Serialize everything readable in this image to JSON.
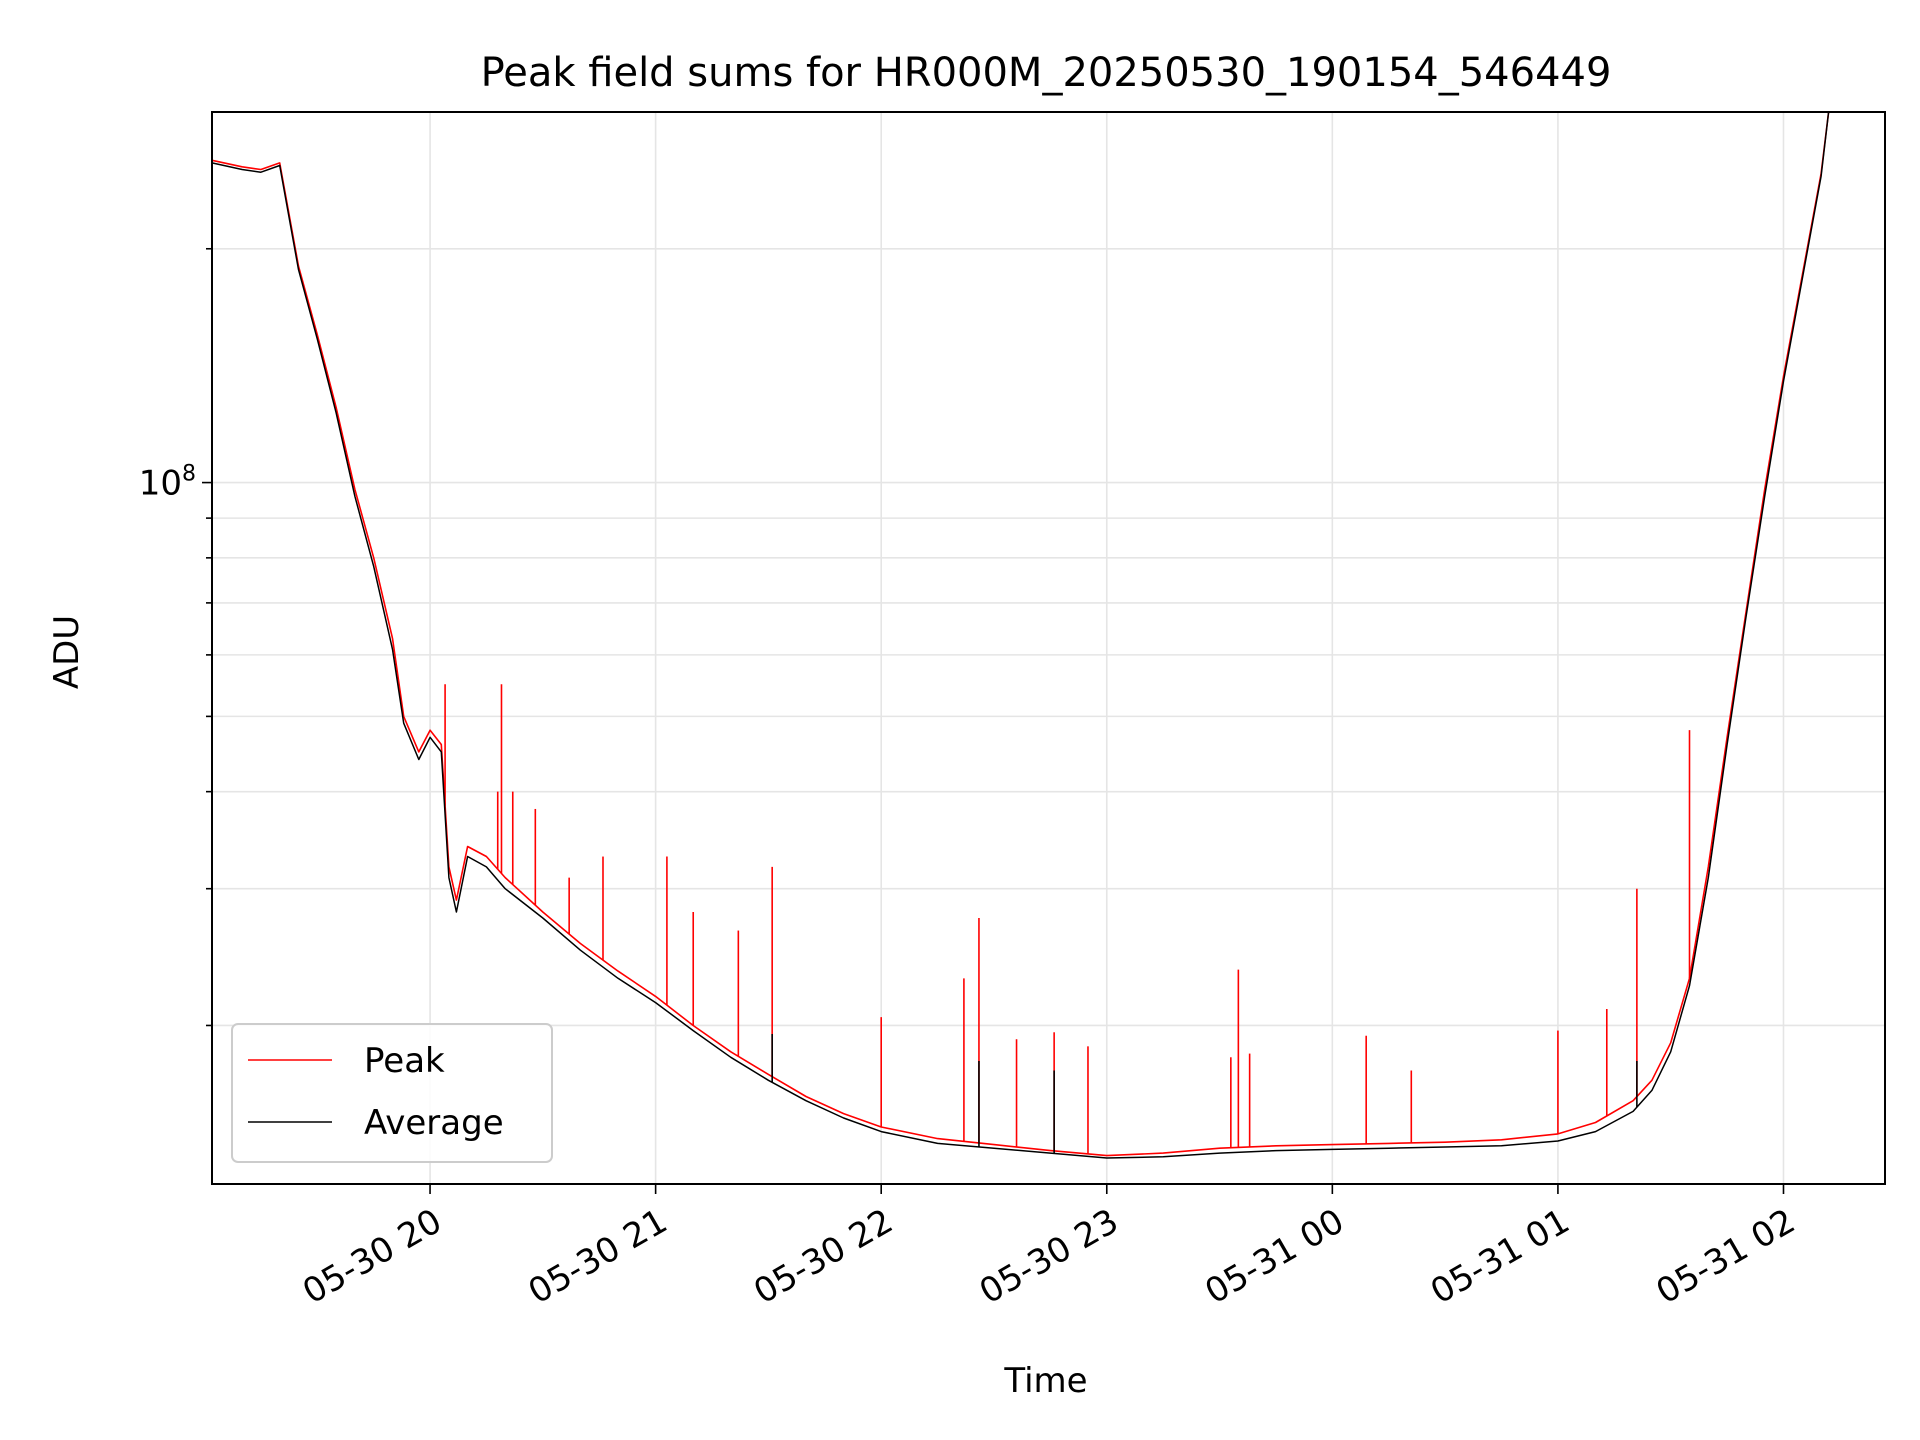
{
  "chart_data": {
    "type": "line",
    "title": "Peak field sums for HR000M_20250530_190154_546449",
    "xlabel": "Time",
    "ylabel": "ADU",
    "y_scale": "log",
    "ylim": [
      12500000,
      300000000
    ],
    "xlim": [
      "2025-05-30 19:02",
      "2025-05-31 02:27"
    ],
    "x_ticks": [
      {
        "t": "2025-05-30 20:00",
        "label": "05-30 20"
      },
      {
        "t": "2025-05-30 21:00",
        "label": "05-30 21"
      },
      {
        "t": "2025-05-30 22:00",
        "label": "05-30 22"
      },
      {
        "t": "2025-05-30 23:00",
        "label": "05-30 23"
      },
      {
        "t": "2025-05-31 00:00",
        "label": "05-31 00"
      },
      {
        "t": "2025-05-31 01:00",
        "label": "05-31 01"
      },
      {
        "t": "2025-05-31 02:00",
        "label": "05-31 02"
      }
    ],
    "y_major_ticks": [
      {
        "value": 100000000,
        "label_base": "10",
        "label_exp": "8"
      }
    ],
    "y_minor_ticks": [
      20000000,
      30000000,
      40000000,
      50000000,
      60000000,
      70000000,
      80000000,
      90000000,
      200000000
    ],
    "grid": true,
    "legend_position": "lower-left",
    "series": [
      {
        "name": "Peak",
        "color": "#ff0000",
        "x": [
          "2025-05-30 19:02",
          "2025-05-30 19:10",
          "2025-05-30 19:15",
          "2025-05-30 19:20",
          "2025-05-30 19:25",
          "2025-05-30 19:30",
          "2025-05-30 19:35",
          "2025-05-30 19:40",
          "2025-05-30 19:45",
          "2025-05-30 19:50",
          "2025-05-30 19:53",
          "2025-05-30 19:57",
          "2025-05-30 20:00",
          "2025-05-30 20:03",
          "2025-05-30 20:05",
          "2025-05-30 20:07",
          "2025-05-30 20:10",
          "2025-05-30 20:15",
          "2025-05-30 20:20",
          "2025-05-30 20:30",
          "2025-05-30 20:40",
          "2025-05-30 20:50",
          "2025-05-30 21:00",
          "2025-05-30 21:10",
          "2025-05-30 21:20",
          "2025-05-30 21:30",
          "2025-05-30 21:40",
          "2025-05-30 21:50",
          "2025-05-30 22:00",
          "2025-05-30 22:15",
          "2025-05-30 22:30",
          "2025-05-30 22:45",
          "2025-05-30 23:00",
          "2025-05-30 23:15",
          "2025-05-30 23:30",
          "2025-05-30 23:45",
          "2025-05-31 00:00",
          "2025-05-31 00:15",
          "2025-05-31 00:30",
          "2025-05-31 00:45",
          "2025-05-31 01:00",
          "2025-05-31 01:10",
          "2025-05-31 01:20",
          "2025-05-31 01:25",
          "2025-05-31 01:30",
          "2025-05-31 01:35",
          "2025-05-31 01:40",
          "2025-05-31 01:45",
          "2025-05-31 01:50",
          "2025-05-31 01:55",
          "2025-05-31 02:00",
          "2025-05-31 02:05",
          "2025-05-31 02:10",
          "2025-05-31 02:12"
        ],
        "y": [
          260000000,
          255000000,
          253000000,
          258000000,
          190000000,
          155000000,
          125000000,
          98000000,
          80000000,
          63000000,
          50000000,
          45000000,
          48000000,
          46000000,
          32000000,
          29000000,
          34000000,
          33000000,
          31000000,
          28000000,
          25500000,
          23500000,
          21800000,
          20000000,
          18500000,
          17300000,
          16200000,
          15400000,
          14800000,
          14300000,
          14050000,
          13800000,
          13600000,
          13700000,
          13900000,
          14000000,
          14050000,
          14100000,
          14150000,
          14250000,
          14500000,
          15000000,
          16000000,
          17000000,
          19000000,
          23000000,
          32000000,
          47000000,
          68000000,
          98000000,
          137000000,
          185000000,
          250000000,
          300000000
        ],
        "spikes": [
          {
            "x": "2025-05-30 20:04",
            "y": 55000000
          },
          {
            "x": "2025-05-30 20:18",
            "y": 40000000
          },
          {
            "x": "2025-05-30 20:19",
            "y": 55000000
          },
          {
            "x": "2025-05-30 20:22",
            "y": 40000000
          },
          {
            "x": "2025-05-30 20:28",
            "y": 38000000
          },
          {
            "x": "2025-05-30 20:37",
            "y": 31000000
          },
          {
            "x": "2025-05-30 20:46",
            "y": 33000000
          },
          {
            "x": "2025-05-30 21:03",
            "y": 33000000
          },
          {
            "x": "2025-05-30 21:10",
            "y": 28000000
          },
          {
            "x": "2025-05-30 21:22",
            "y": 26500000
          },
          {
            "x": "2025-05-30 21:31",
            "y": 32000000
          },
          {
            "x": "2025-05-30 22:00",
            "y": 20500000
          },
          {
            "x": "2025-05-30 22:22",
            "y": 23000000
          },
          {
            "x": "2025-05-30 22:26",
            "y": 27500000
          },
          {
            "x": "2025-05-30 22:36",
            "y": 19200000
          },
          {
            "x": "2025-05-30 22:46",
            "y": 19600000
          },
          {
            "x": "2025-05-30 22:55",
            "y": 18800000
          },
          {
            "x": "2025-05-30 23:33",
            "y": 18200000
          },
          {
            "x": "2025-05-30 23:35",
            "y": 23600000
          },
          {
            "x": "2025-05-30 23:38",
            "y": 18400000
          },
          {
            "x": "2025-05-31 00:09",
            "y": 19400000
          },
          {
            "x": "2025-05-31 00:21",
            "y": 17500000
          },
          {
            "x": "2025-05-31 01:00",
            "y": 19700000
          },
          {
            "x": "2025-05-31 01:13",
            "y": 21000000
          },
          {
            "x": "2025-05-31 01:21",
            "y": 30000000
          },
          {
            "x": "2025-05-31 01:35",
            "y": 48000000
          }
        ]
      },
      {
        "name": "Average",
        "color": "#000000",
        "x": [
          "2025-05-30 19:02",
          "2025-05-30 19:10",
          "2025-05-30 19:15",
          "2025-05-30 19:20",
          "2025-05-30 19:25",
          "2025-05-30 19:30",
          "2025-05-30 19:35",
          "2025-05-30 19:40",
          "2025-05-30 19:45",
          "2025-05-30 19:50",
          "2025-05-30 19:53",
          "2025-05-30 19:57",
          "2025-05-30 20:00",
          "2025-05-30 20:03",
          "2025-05-30 20:05",
          "2025-05-30 20:07",
          "2025-05-30 20:10",
          "2025-05-30 20:15",
          "2025-05-30 20:20",
          "2025-05-30 20:30",
          "2025-05-30 20:40",
          "2025-05-30 20:50",
          "2025-05-30 21:00",
          "2025-05-30 21:10",
          "2025-05-30 21:20",
          "2025-05-30 21:30",
          "2025-05-30 21:40",
          "2025-05-30 21:50",
          "2025-05-30 22:00",
          "2025-05-30 22:15",
          "2025-05-30 22:30",
          "2025-05-30 22:45",
          "2025-05-30 23:00",
          "2025-05-30 23:15",
          "2025-05-30 23:30",
          "2025-05-30 23:45",
          "2025-05-31 00:00",
          "2025-05-31 00:15",
          "2025-05-31 00:30",
          "2025-05-31 00:45",
          "2025-05-31 01:00",
          "2025-05-31 01:10",
          "2025-05-31 01:20",
          "2025-05-31 01:25",
          "2025-05-31 01:30",
          "2025-05-31 01:35",
          "2025-05-31 01:40",
          "2025-05-31 01:45",
          "2025-05-31 01:50",
          "2025-05-31 01:55",
          "2025-05-31 02:00",
          "2025-05-31 02:05",
          "2025-05-31 02:10",
          "2025-05-31 02:12"
        ],
        "y": [
          258000000,
          253000000,
          251000000,
          256000000,
          188000000,
          153000000,
          123000000,
          96000000,
          78000000,
          61000000,
          49000000,
          44000000,
          47000000,
          45000000,
          31000000,
          28000000,
          33000000,
          32000000,
          30000000,
          27500000,
          25000000,
          23000000,
          21400000,
          19700000,
          18200000,
          17000000,
          16000000,
          15200000,
          14600000,
          14100000,
          13900000,
          13700000,
          13500000,
          13550000,
          13700000,
          13800000,
          13850000,
          13900000,
          13950000,
          14000000,
          14200000,
          14600000,
          15500000,
          16500000,
          18500000,
          22500000,
          31000000,
          46000000,
          67000000,
          96000000,
          135000000,
          183000000,
          248000000,
          300000000
        ],
        "spikes": [
          {
            "x": "2025-05-30 21:31",
            "y": 19500000
          },
          {
            "x": "2025-05-30 22:26",
            "y": 18000000
          },
          {
            "x": "2025-05-30 22:46",
            "y": 17500000
          },
          {
            "x": "2025-05-31 01:21",
            "y": 18000000
          }
        ]
      }
    ]
  }
}
